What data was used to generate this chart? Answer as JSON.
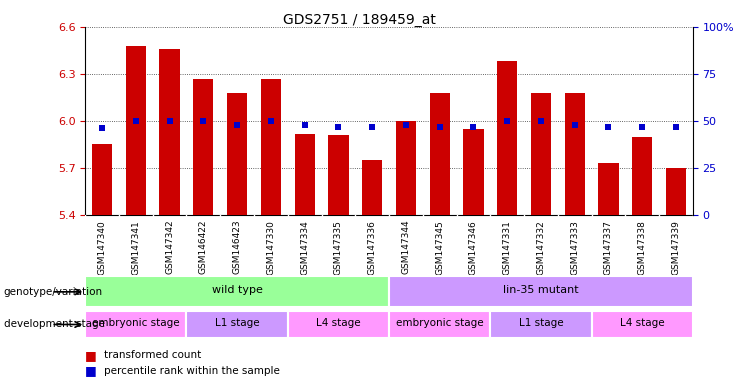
{
  "title": "GDS2751 / 189459_at",
  "samples": [
    "GSM147340",
    "GSM147341",
    "GSM147342",
    "GSM146422",
    "GSM146423",
    "GSM147330",
    "GSM147334",
    "GSM147335",
    "GSM147336",
    "GSM147344",
    "GSM147345",
    "GSM147346",
    "GSM147331",
    "GSM147332",
    "GSM147333",
    "GSM147337",
    "GSM147338",
    "GSM147339"
  ],
  "bar_values": [
    5.85,
    6.48,
    6.46,
    6.27,
    6.18,
    6.27,
    5.92,
    5.91,
    5.75,
    6.0,
    6.18,
    5.95,
    6.38,
    6.18,
    6.18,
    5.73,
    5.9,
    5.7
  ],
  "percentile_values": [
    5.955,
    6.002,
    6.002,
    6.002,
    5.972,
    6.002,
    5.972,
    5.962,
    5.962,
    5.972,
    5.962,
    5.962,
    6.002,
    6.002,
    5.972,
    5.962,
    5.962,
    5.962
  ],
  "ylim": [
    5.4,
    6.6
  ],
  "yticks_left": [
    5.4,
    5.7,
    6.0,
    6.3,
    6.6
  ],
  "right_yticks_pct": [
    0,
    25,
    50,
    75,
    100
  ],
  "bar_color": "#cc0000",
  "square_color": "#0000cc",
  "bar_bottom": 5.4,
  "genotype_groups": [
    {
      "label": "wild type",
      "start": 0,
      "end": 9,
      "color": "#99ff99"
    },
    {
      "label": "lin-35 mutant",
      "start": 9,
      "end": 18,
      "color": "#cc99ff"
    }
  ],
  "dev_stage_groups": [
    {
      "label": "embryonic stage",
      "start": 0,
      "end": 3,
      "color": "#ff99ff"
    },
    {
      "label": "L1 stage",
      "start": 3,
      "end": 6,
      "color": "#cc99ff"
    },
    {
      "label": "L4 stage",
      "start": 6,
      "end": 9,
      "color": "#ff99ff"
    },
    {
      "label": "embryonic stage",
      "start": 9,
      "end": 12,
      "color": "#ff99ff"
    },
    {
      "label": "L1 stage",
      "start": 12,
      "end": 15,
      "color": "#cc99ff"
    },
    {
      "label": "L4 stage",
      "start": 15,
      "end": 18,
      "color": "#ff99ff"
    }
  ],
  "xticklabel_bg": "#dddddd",
  "genotype_label": "genotype/variation",
  "devstage_label": "development stage",
  "legend_red": "transformed count",
  "legend_blue": "percentile rank within the sample"
}
